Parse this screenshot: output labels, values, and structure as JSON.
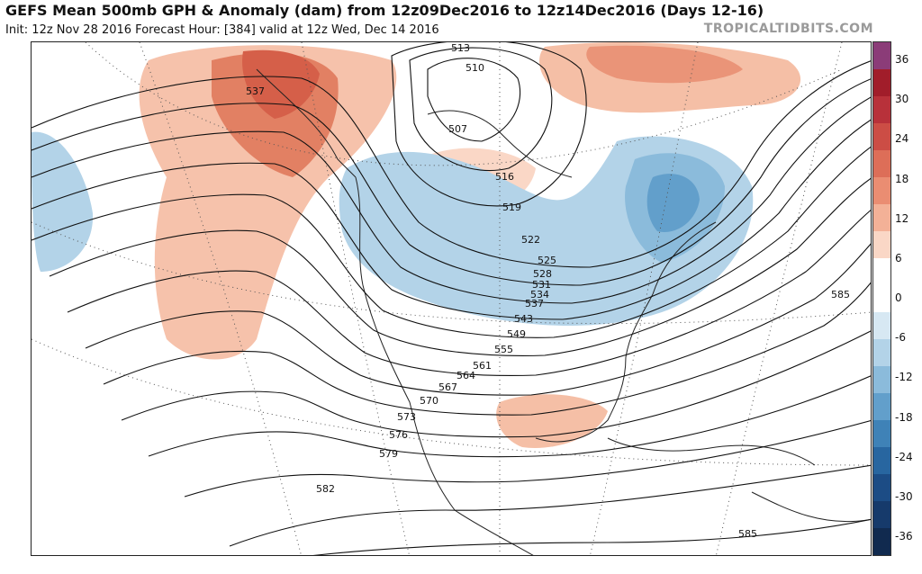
{
  "header": {
    "title": "GEFS Mean 500mb GPH & Anomaly (dam) from 12z09Dec2016 to 12z14Dec2016 (Days 12-16)",
    "subtitle": "Init: 12z Nov 28 2016   Forecast Hour: [384]   valid at 12z Wed, Dec 14 2016",
    "brand": "TROPICALTIDBITS.COM"
  },
  "colorbar": {
    "labels": [
      "36",
      "30",
      "24",
      "18",
      "12",
      "6",
      "0",
      "-6",
      "-12",
      "-18",
      "-24",
      "-30",
      "-36"
    ],
    "colors": [
      "#8b3c78",
      "#a11d2a",
      "#b8313a",
      "#cc4d45",
      "#dd6e58",
      "#ea8d72",
      "#f3b197",
      "#fad7c6",
      "#ffffff",
      "#ffffff",
      "#d7e8f3",
      "#b3d3e8",
      "#8bbbdb",
      "#629fcb",
      "#3f82b7",
      "#2866a0",
      "#1c4c85",
      "#163a6b",
      "#112a4f"
    ]
  },
  "contour_labels": [
    "537",
    "513",
    "510",
    "507",
    "516",
    "519",
    "522",
    "525",
    "528",
    "531",
    "534",
    "537",
    "543",
    "549",
    "555",
    "561",
    "564",
    "567",
    "570",
    "573",
    "576",
    "579",
    "582",
    "585",
    "585"
  ],
  "colors": {
    "anomaly_positive": "#ea8d72",
    "anomaly_negative": "#8bbbdb",
    "contour": "#111111"
  }
}
